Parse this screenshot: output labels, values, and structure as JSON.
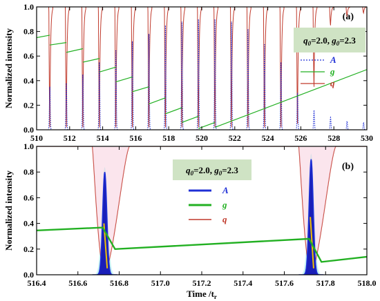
{
  "colors": {
    "A": "#1f2fd6",
    "g": "#22b022",
    "q": "#c0392b",
    "fill_A": "#1a1fb8",
    "legend_bg": "#cfe3c4",
    "frame": "#000000"
  },
  "chart_data": [
    {
      "type": "line",
      "panel_label": "(a)",
      "xlabel": "",
      "ylabel": "Normalized intensity",
      "xlim": [
        510,
        530
      ],
      "ylim": [
        0,
        1.0
      ],
      "x_ticks": [
        "510",
        "512",
        "514",
        "516",
        "518",
        "520",
        "522",
        "524",
        "526",
        "528",
        "530"
      ],
      "y_ticks": [
        "0.0",
        "0.2",
        "0.4",
        "0.6",
        "0.8",
        "1.0"
      ],
      "legend_title": "q0=2.0, g0=2.3",
      "legend_entries": [
        "A",
        "g",
        "q"
      ],
      "legend_position": "right",
      "pulses": [
        {
          "t": 510.8,
          "A": 0.35
        },
        {
          "t": 511.8,
          "A": 0.38
        },
        {
          "t": 512.8,
          "A": 0.45
        },
        {
          "t": 513.8,
          "A": 0.55
        },
        {
          "t": 514.8,
          "A": 0.65
        },
        {
          "t": 515.8,
          "A": 0.72
        },
        {
          "t": 516.8,
          "A": 0.78
        },
        {
          "t": 517.8,
          "A": 0.85
        },
        {
          "t": 518.8,
          "A": 0.88
        },
        {
          "t": 519.8,
          "A": 0.9
        },
        {
          "t": 520.8,
          "A": 0.9
        },
        {
          "t": 521.8,
          "A": 0.88
        },
        {
          "t": 522.8,
          "A": 0.82
        },
        {
          "t": 523.8,
          "A": 0.7
        },
        {
          "t": 524.8,
          "A": 0.55
        },
        {
          "t": 525.8,
          "A": 0.3
        },
        {
          "t": 526.8,
          "A": 0.16
        },
        {
          "t": 527.8,
          "A": 0.1
        },
        {
          "t": 528.8,
          "A": 0.07
        },
        {
          "t": 529.8,
          "A": 0.06
        }
      ],
      "g_segments": [
        {
          "x": [
            510,
            510.8
          ],
          "y": [
            0.75,
            0.77
          ]
        },
        {
          "x": [
            510.8,
            511.8
          ],
          "y": [
            0.69,
            0.71
          ]
        },
        {
          "x": [
            511.8,
            512.8
          ],
          "y": [
            0.63,
            0.66
          ]
        },
        {
          "x": [
            512.8,
            513.8
          ],
          "y": [
            0.55,
            0.58
          ]
        },
        {
          "x": [
            513.8,
            514.8
          ],
          "y": [
            0.47,
            0.51
          ]
        },
        {
          "x": [
            514.8,
            515.8
          ],
          "y": [
            0.39,
            0.43
          ]
        },
        {
          "x": [
            515.8,
            516.8
          ],
          "y": [
            0.31,
            0.35
          ]
        },
        {
          "x": [
            516.8,
            517.8
          ],
          "y": [
            0.21,
            0.26
          ]
        },
        {
          "x": [
            517.8,
            518.8
          ],
          "y": [
            0.13,
            0.18
          ]
        },
        {
          "x": [
            518.8,
            519.8
          ],
          "y": [
            0.06,
            0.11
          ]
        },
        {
          "x": [
            519.8,
            520.8
          ],
          "y": [
            0.01,
            0.06
          ]
        },
        {
          "x": [
            520.8,
            530
          ],
          "y": [
            0.02,
            0.49
          ]
        }
      ],
      "q_dips": [
        {
          "t": 510.8,
          "min": 0.02
        },
        {
          "t": 511.8,
          "min": 0.02
        },
        {
          "t": 512.8,
          "min": 0.02
        },
        {
          "t": 513.8,
          "min": 0.02
        },
        {
          "t": 514.8,
          "min": 0.02
        },
        {
          "t": 515.8,
          "min": 0.02
        },
        {
          "t": 516.8,
          "min": 0.02
        },
        {
          "t": 517.8,
          "min": 0.02
        },
        {
          "t": 518.8,
          "min": 0.02
        },
        {
          "t": 519.8,
          "min": 0.02
        },
        {
          "t": 520.8,
          "min": 0.02
        },
        {
          "t": 521.8,
          "min": 0.02
        },
        {
          "t": 522.8,
          "min": 0.02
        },
        {
          "t": 523.8,
          "min": 0.02
        },
        {
          "t": 524.8,
          "min": 0.02
        },
        {
          "t": 525.8,
          "min": 0.05
        },
        {
          "t": 526.8,
          "min": 0.35
        },
        {
          "t": 527.8,
          "min": 0.85
        },
        {
          "t": 528.8,
          "min": 0.92
        },
        {
          "t": 529.8,
          "min": 0.95
        }
      ]
    },
    {
      "type": "line",
      "panel_label": "(b)",
      "xlabel": "Time /t_r",
      "ylabel": "Normalized intensity",
      "xlim": [
        516.4,
        518.0
      ],
      "ylim": [
        0,
        1.0
      ],
      "x_ticks": [
        "516.4",
        "516.6",
        "516.8",
        "517.0",
        "517.2",
        "517.4",
        "517.6",
        "517.8",
        "518.0"
      ],
      "y_ticks": [
        "0.0",
        "0.2",
        "0.4",
        "0.6",
        "0.8",
        "1.0"
      ],
      "legend_title": "q0=2.0, g0=2.3",
      "legend_entries": [
        "A",
        "g",
        "q"
      ],
      "legend_position": "top-center",
      "pulses": [
        {
          "t": 516.73,
          "A": 0.8
        },
        {
          "t": 517.73,
          "A": 0.9
        }
      ],
      "g": [
        {
          "x": 516.4,
          "y": 0.345
        },
        {
          "x": 516.72,
          "y": 0.368
        },
        {
          "x": 516.78,
          "y": 0.2
        },
        {
          "x": 517.72,
          "y": 0.28
        },
        {
          "x": 517.78,
          "y": 0.1
        },
        {
          "x": 518.0,
          "y": 0.14
        }
      ],
      "q_dips": [
        {
          "t": 516.73,
          "min": 0.02
        },
        {
          "t": 517.73,
          "min": 0.02
        }
      ]
    }
  ]
}
